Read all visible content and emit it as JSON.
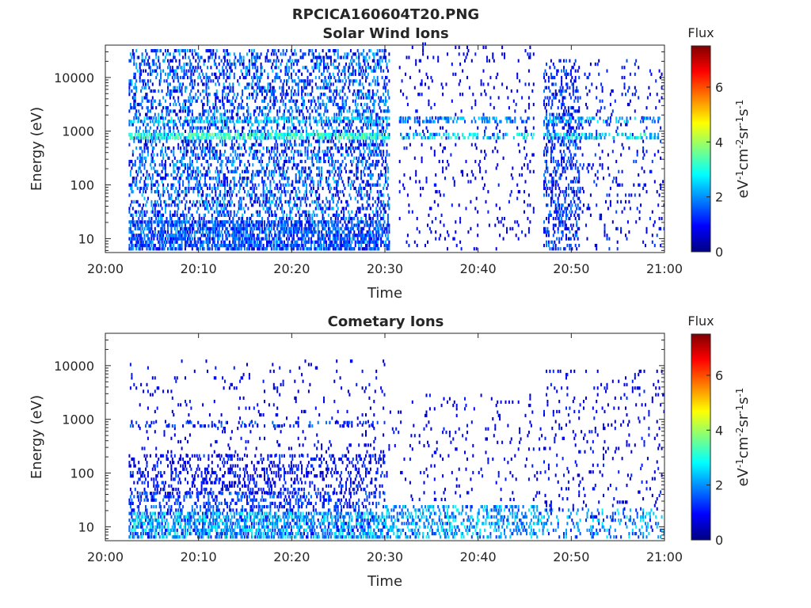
{
  "figure": {
    "title": "RPCICA160604T20.PNG"
  },
  "chart_data": [
    {
      "type": "heatmap",
      "title": "Solar Wind Ions",
      "xlabel": "Time",
      "ylabel": "Energy (eV)",
      "x_ticks": [
        "20:00",
        "20:10",
        "20:20",
        "20:30",
        "20:40",
        "20:50",
        "21:00"
      ],
      "x_range_minutes": [
        0,
        60
      ],
      "y_scale": "log",
      "y_ticks": [
        "10",
        "100",
        "1000",
        "10000"
      ],
      "y_range": [
        5.5,
        40000
      ],
      "colorbar": {
        "title": "Flux",
        "unit": "eV-1 cm-2 sr-1 s-1",
        "ticks": [
          "0",
          "2",
          "4",
          "6"
        ],
        "range": [
          0,
          7.5
        ],
        "colormap": "jet"
      },
      "bands": [
        {
          "t0": 2.5,
          "t1": 30.5,
          "e_min": 6,
          "e_max": 30000,
          "density": 0.32,
          "flux_min": 0.4,
          "flux_max": 2.5
        },
        {
          "t0": 2.5,
          "t1": 30.5,
          "e_min": 700,
          "e_max": 900,
          "density": 0.6,
          "flux_min": 2.5,
          "flux_max": 3.8
        },
        {
          "t0": 2.5,
          "t1": 30.5,
          "e_min": 1400,
          "e_max": 1800,
          "density": 0.35,
          "flux_min": 1.8,
          "flux_max": 3.0
        },
        {
          "t0": 2.5,
          "t1": 30.5,
          "e_min": 6,
          "e_max": 20,
          "density": 0.45,
          "flux_min": 0.8,
          "flux_max": 2.2
        },
        {
          "t0": 31.5,
          "t1": 46,
          "e_min": 6,
          "e_max": 40000,
          "density": 0.05,
          "flux_min": 0.5,
          "flux_max": 1.2
        },
        {
          "t0": 31.5,
          "t1": 46,
          "e_min": 700,
          "e_max": 900,
          "density": 0.35,
          "flux_min": 1.5,
          "flux_max": 3.5
        },
        {
          "t0": 31.5,
          "t1": 46,
          "e_min": 1400,
          "e_max": 1800,
          "density": 0.4,
          "flux_min": 1.2,
          "flux_max": 2.6
        },
        {
          "t0": 47,
          "t1": 51,
          "e_min": 6,
          "e_max": 20000,
          "density": 0.3,
          "flux_min": 0.4,
          "flux_max": 2.0
        },
        {
          "t0": 51,
          "t1": 60,
          "e_min": 6,
          "e_max": 20000,
          "density": 0.06,
          "flux_min": 0.4,
          "flux_max": 1.5
        },
        {
          "t0": 47,
          "t1": 59.5,
          "e_min": 700,
          "e_max": 900,
          "density": 0.35,
          "flux_min": 1.8,
          "flux_max": 3.5
        },
        {
          "t0": 47,
          "t1": 59.5,
          "e_min": 1400,
          "e_max": 1800,
          "density": 0.3,
          "flux_min": 1.2,
          "flux_max": 2.8
        }
      ]
    },
    {
      "type": "heatmap",
      "title": "Cometary Ions",
      "xlabel": "Time",
      "ylabel": "Energy (eV)",
      "x_ticks": [
        "20:00",
        "20:10",
        "20:20",
        "20:30",
        "20:40",
        "20:50",
        "21:00"
      ],
      "x_range_minutes": [
        0,
        60
      ],
      "y_scale": "log",
      "y_ticks": [
        "10",
        "100",
        "1000",
        "10000"
      ],
      "y_range": [
        5.5,
        40000
      ],
      "colorbar": {
        "title": "Flux",
        "unit": "eV-1 cm-2 sr-1 s-1",
        "ticks": [
          "0",
          "2",
          "4",
          "6"
        ],
        "range": [
          0,
          7.5
        ],
        "colormap": "jet"
      },
      "bands": [
        {
          "t0": 2.5,
          "t1": 30,
          "e_min": 40,
          "e_max": 200,
          "density": 0.25,
          "flux_min": 0.4,
          "flux_max": 1.5
        },
        {
          "t0": 2.5,
          "t1": 30,
          "e_min": 200,
          "e_max": 12000,
          "density": 0.04,
          "flux_min": 0.4,
          "flux_max": 1.2
        },
        {
          "t0": 2.5,
          "t1": 30,
          "e_min": 6,
          "e_max": 40,
          "density": 0.3,
          "flux_min": 0.6,
          "flux_max": 2.0
        },
        {
          "t0": 2.5,
          "t1": 30,
          "e_min": 6,
          "e_max": 18,
          "density": 0.35,
          "flux_min": 1.5,
          "flux_max": 3.2
        },
        {
          "t0": 2.5,
          "t1": 30,
          "e_min": 700,
          "e_max": 900,
          "density": 0.2,
          "flux_min": 0.6,
          "flux_max": 2.0
        },
        {
          "t0": 30,
          "t1": 47,
          "e_min": 6,
          "e_max": 25,
          "density": 0.3,
          "flux_min": 1.2,
          "flux_max": 3.0
        },
        {
          "t0": 30,
          "t1": 47,
          "e_min": 30,
          "e_max": 3000,
          "density": 0.04,
          "flux_min": 0.4,
          "flux_max": 1.2
        },
        {
          "t0": 47,
          "t1": 60,
          "e_min": 6,
          "e_max": 20,
          "density": 0.2,
          "flux_min": 1.0,
          "flux_max": 2.8
        },
        {
          "t0": 47,
          "t1": 60,
          "e_min": 20,
          "e_max": 8000,
          "density": 0.06,
          "flux_min": 0.4,
          "flux_max": 1.3
        }
      ]
    }
  ]
}
